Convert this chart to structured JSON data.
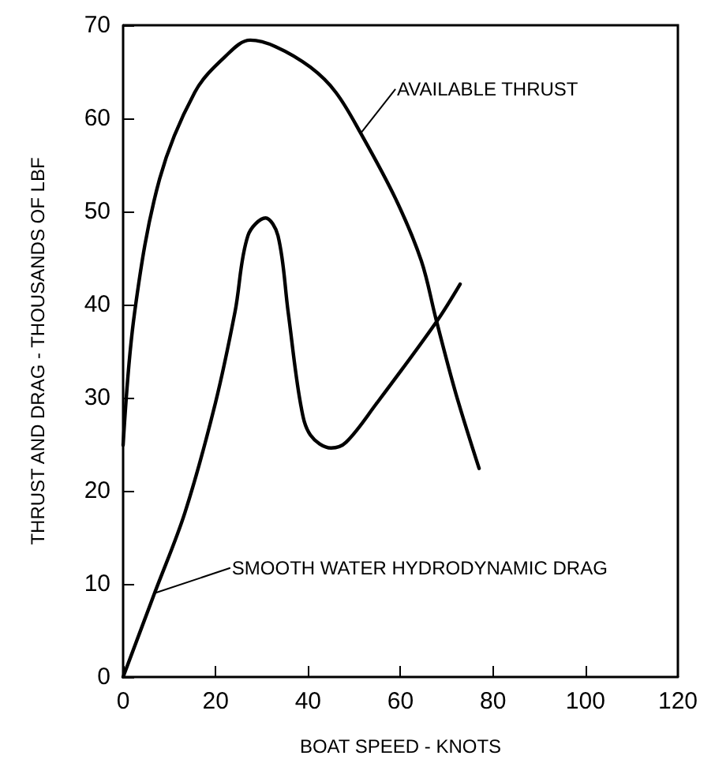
{
  "chart_data": {
    "type": "line",
    "xlabel": "BOAT SPEED - KNOTS",
    "ylabel": "THRUST AND DRAG - THOUSANDS OF LBF",
    "series": [
      {
        "color": "#000000",
        "x": [
          0,
          2.5,
          7.9,
          15.5,
          22,
          27.5,
          33,
          40.5,
          46,
          51.4,
          59,
          64.5,
          67.7,
          72,
          77
        ],
        "values": [
          24.9,
          39.2,
          53.5,
          62.8,
          66.6,
          68.4,
          67.7,
          65.5,
          62.8,
          58.4,
          51.3,
          44.7,
          38.4,
          30.4,
          22.4
        ]
      },
      {
        "color": "#000000",
        "x": [
          0,
          6.8,
          13.4,
          19.9,
          24.2,
          27,
          30.8,
          33.5,
          35.7,
          38.4,
          40.5,
          45,
          48.2,
          54.7,
          67.7,
          72.9
        ],
        "values": [
          0,
          9,
          17.7,
          29.3,
          39.2,
          47.4,
          49.3,
          47.4,
          39.2,
          29.3,
          26,
          24.6,
          25.2,
          29.3,
          38.1,
          42.2
        ]
      }
    ],
    "annotations": [
      {
        "text": "AVAILABLE THRUST",
        "x": 51.4,
        "y": 58.4
      },
      {
        "text": "SMOOTH WATER HYDRODYNAMIC DRAG",
        "x": 6.8,
        "y": 9
      }
    ],
    "xlim": [
      0,
      120
    ],
    "xticks": [
      0,
      20,
      40,
      60,
      80,
      100,
      120
    ],
    "ylim": [
      0,
      70
    ],
    "yticks": [
      0,
      10,
      20,
      30,
      40,
      50,
      60,
      70
    ],
    "marker": "none",
    "line_style": "solid"
  }
}
